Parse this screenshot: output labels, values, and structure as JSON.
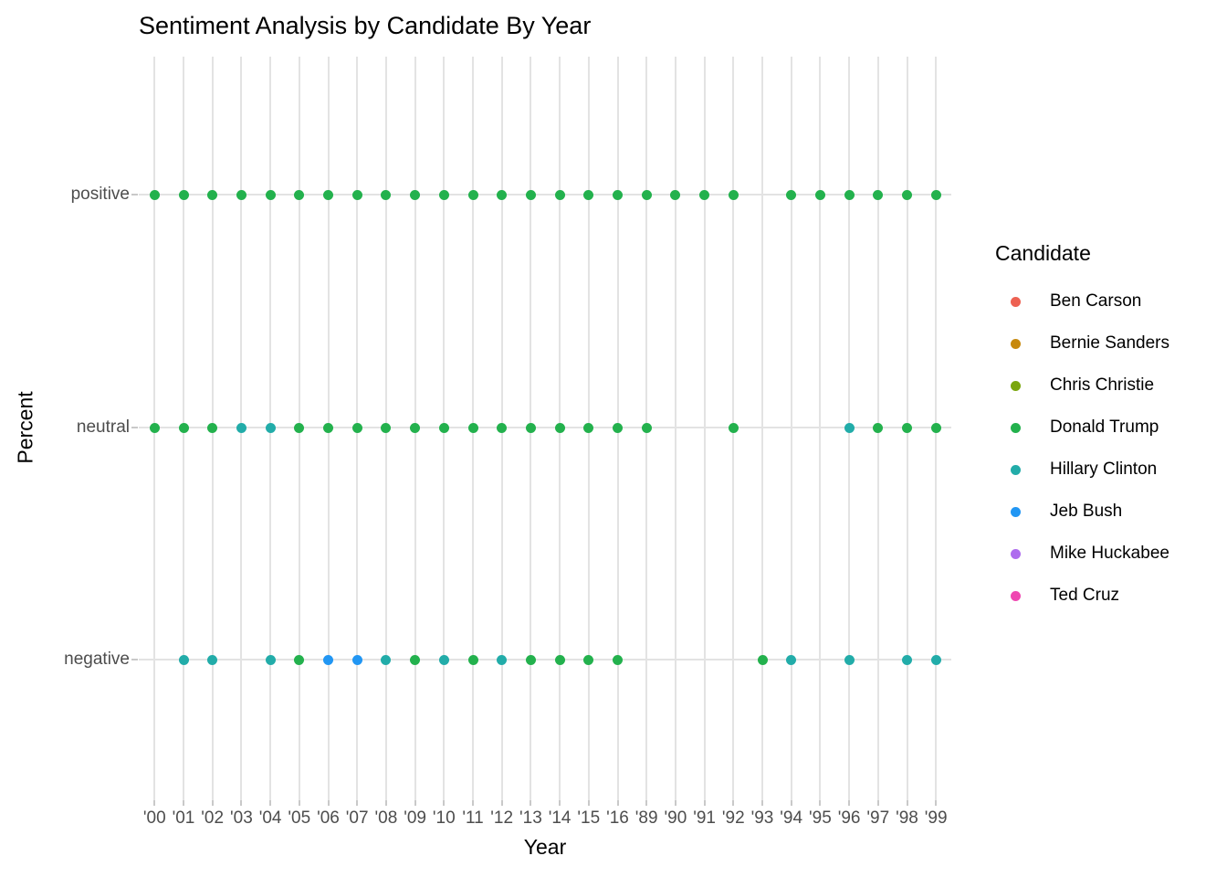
{
  "chart_data": {
    "type": "scatter",
    "title": "Sentiment Analysis by Candidate By Year",
    "xlabel": "Year",
    "ylabel": "Percent",
    "x_categories": [
      "'00",
      "'01",
      "'02",
      "'03",
      "'04",
      "'05",
      "'06",
      "'07",
      "'08",
      "'09",
      "'10",
      "'11",
      "'12",
      "'13",
      "'14",
      "'15",
      "'16",
      "'89",
      "'90",
      "'91",
      "'92",
      "'93",
      "'94",
      "'95",
      "'96",
      "'97",
      "'98",
      "'99"
    ],
    "y_categories_top_to_bottom": [
      "positive",
      "neutral",
      "negative"
    ],
    "grid": true,
    "legend": {
      "title": "Candidate",
      "position": "right",
      "entries": [
        {
          "name": "Ben Carson",
          "color": "#ED6152"
        },
        {
          "name": "Bernie Sanders",
          "color": "#C7890D"
        },
        {
          "name": "Chris Christie",
          "color": "#7AA60D"
        },
        {
          "name": "Donald Trump",
          "color": "#23B14D"
        },
        {
          "name": "Hillary Clinton",
          "color": "#22ACA9"
        },
        {
          "name": "Jeb Bush",
          "color": "#2196F3"
        },
        {
          "name": "Mike Huckabee",
          "color": "#AE6CEE"
        },
        {
          "name": "Ted Cruz",
          "color": "#EF47B1"
        }
      ]
    },
    "series": [
      {
        "name": "Donald Trump",
        "points": [
          [
            "'00",
            "positive"
          ],
          [
            "'01",
            "positive"
          ],
          [
            "'02",
            "positive"
          ],
          [
            "'03",
            "positive"
          ],
          [
            "'04",
            "positive"
          ],
          [
            "'05",
            "positive"
          ],
          [
            "'06",
            "positive"
          ],
          [
            "'07",
            "positive"
          ],
          [
            "'08",
            "positive"
          ],
          [
            "'09",
            "positive"
          ],
          [
            "'10",
            "positive"
          ],
          [
            "'11",
            "positive"
          ],
          [
            "'12",
            "positive"
          ],
          [
            "'13",
            "positive"
          ],
          [
            "'14",
            "positive"
          ],
          [
            "'15",
            "positive"
          ],
          [
            "'16",
            "positive"
          ],
          [
            "'89",
            "positive"
          ],
          [
            "'90",
            "positive"
          ],
          [
            "'91",
            "positive"
          ],
          [
            "'92",
            "positive"
          ],
          [
            "'94",
            "positive"
          ],
          [
            "'95",
            "positive"
          ],
          [
            "'96",
            "positive"
          ],
          [
            "'97",
            "positive"
          ],
          [
            "'98",
            "positive"
          ],
          [
            "'99",
            "positive"
          ],
          [
            "'00",
            "neutral"
          ],
          [
            "'01",
            "neutral"
          ],
          [
            "'02",
            "neutral"
          ],
          [
            "'05",
            "neutral"
          ],
          [
            "'06",
            "neutral"
          ],
          [
            "'07",
            "neutral"
          ],
          [
            "'08",
            "neutral"
          ],
          [
            "'09",
            "neutral"
          ],
          [
            "'10",
            "neutral"
          ],
          [
            "'11",
            "neutral"
          ],
          [
            "'12",
            "neutral"
          ],
          [
            "'13",
            "neutral"
          ],
          [
            "'14",
            "neutral"
          ],
          [
            "'15",
            "neutral"
          ],
          [
            "'16",
            "neutral"
          ],
          [
            "'89",
            "neutral"
          ],
          [
            "'92",
            "neutral"
          ],
          [
            "'97",
            "neutral"
          ],
          [
            "'98",
            "neutral"
          ],
          [
            "'99",
            "neutral"
          ],
          [
            "'05",
            "negative"
          ],
          [
            "'09",
            "negative"
          ],
          [
            "'11",
            "negative"
          ],
          [
            "'13",
            "negative"
          ],
          [
            "'14",
            "negative"
          ],
          [
            "'15",
            "negative"
          ],
          [
            "'16",
            "negative"
          ],
          [
            "'93",
            "negative"
          ]
        ]
      },
      {
        "name": "Hillary Clinton",
        "points": [
          [
            "'03",
            "neutral"
          ],
          [
            "'04",
            "neutral"
          ],
          [
            "'96",
            "neutral"
          ],
          [
            "'01",
            "negative"
          ],
          [
            "'02",
            "negative"
          ],
          [
            "'04",
            "negative"
          ],
          [
            "'08",
            "negative"
          ],
          [
            "'10",
            "negative"
          ],
          [
            "'12",
            "negative"
          ],
          [
            "'94",
            "negative"
          ],
          [
            "'96",
            "negative"
          ],
          [
            "'98",
            "negative"
          ],
          [
            "'99",
            "negative"
          ]
        ]
      },
      {
        "name": "Jeb Bush",
        "points": [
          [
            "'06",
            "negative"
          ],
          [
            "'07",
            "negative"
          ]
        ]
      }
    ]
  }
}
